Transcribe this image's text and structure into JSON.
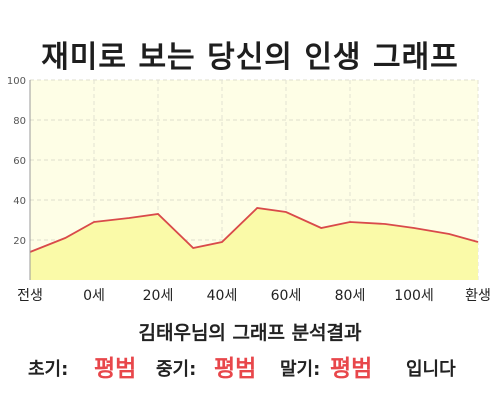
{
  "page": {
    "title": "재미로 보는 당신의 인생 그래프",
    "summary": "김태우님의 그래프 분석결과",
    "result": {
      "early_label": "초기:",
      "early_value": "평범",
      "mid_label": "중기:",
      "mid_value": "평범",
      "late_label": "말기:",
      "late_value": "평범",
      "suffix": "입니다",
      "value_color": "#e8474b"
    }
  },
  "chart_data": {
    "type": "area",
    "title": "재미로 보는 당신의 인생 그래프",
    "xlabel": "",
    "ylabel": "",
    "x_tick_labels": [
      "전생",
      "0세",
      "20세",
      "40세",
      "60세",
      "80세",
      "100세",
      "환생"
    ],
    "x_tick_positions": [
      -20,
      0,
      20,
      40,
      60,
      80,
      100,
      120
    ],
    "xlim": [
      -20,
      120
    ],
    "ylim": [
      0,
      100
    ],
    "y_ticks": [
      20,
      40,
      60,
      80,
      100
    ],
    "grid": true,
    "x": [
      -20,
      -9,
      0,
      11,
      20,
      31,
      40,
      51,
      60,
      71,
      80,
      91,
      100,
      111,
      120
    ],
    "y": [
      14,
      21,
      29,
      31,
      33,
      16,
      19,
      36,
      34,
      26,
      29,
      28,
      26,
      23,
      19
    ],
    "line_color": "#d94a4a",
    "fill_color": "#fafaa8",
    "plot_background": "#fefee6"
  }
}
